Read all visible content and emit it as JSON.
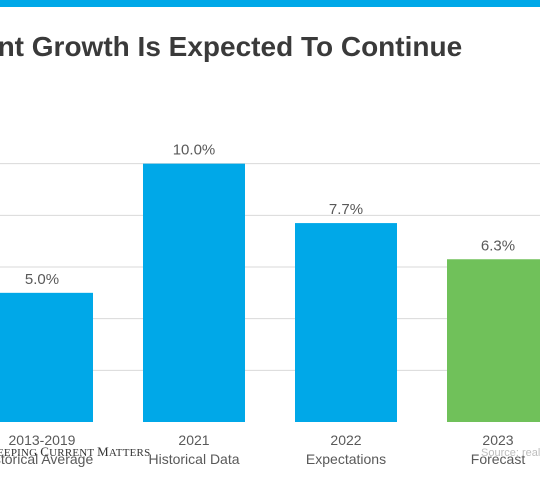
{
  "title": "ent Growth Is Expected To Continue",
  "brand": "EEPING CURRENT MATTERS",
  "source": "Source: real",
  "colors": {
    "accent": "#00a8e8",
    "forecast": "#70c15a",
    "grid": "#d9d9d9",
    "text": "#595959"
  },
  "chart_data": {
    "type": "bar",
    "categories": [
      [
        "2013-2019",
        "istorical Average"
      ],
      [
        "2021",
        "Historical Data"
      ],
      [
        "2022",
        "Expectations"
      ],
      [
        "2023",
        "Forecast"
      ]
    ],
    "values": [
      5.0,
      10.0,
      7.7,
      6.3
    ],
    "value_labels": [
      "5.0%",
      "10.0%",
      "7.7%",
      "6.3%"
    ],
    "bar_colors": [
      "#00a8e8",
      "#00a8e8",
      "#00a8e8",
      "#70c15a"
    ],
    "ylim": [
      0,
      12
    ],
    "gridlines": [
      2,
      4,
      6,
      8,
      10
    ],
    "grid": true,
    "legend": "none",
    "xlabel": "",
    "ylabel": ""
  }
}
